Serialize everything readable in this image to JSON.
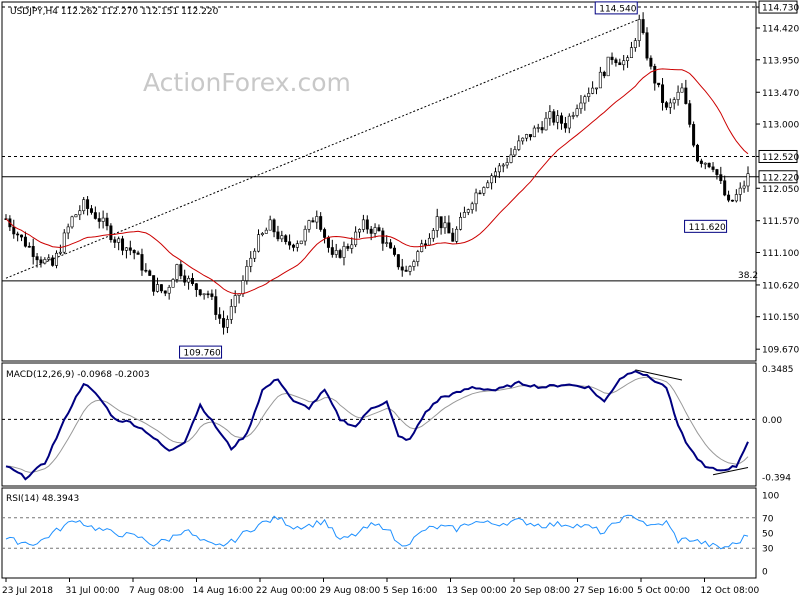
{
  "header": {
    "symbol": "USDJPY,H4",
    "ohlc": "112.262 112.270 112.151 112.220"
  },
  "watermark": "ActionForex.com",
  "colors": {
    "candles": "#000000",
    "ma": "#cc0000",
    "macd_line": "#000080",
    "signal": "#999999",
    "rsi": "#1e90ff",
    "box": "#000080"
  },
  "chart_data": [
    {
      "type": "candlestick",
      "title": "USDJPY,H4",
      "price_labels": [
        "114.730",
        "114.420",
        "113.950",
        "113.470",
        "113.000",
        "112.520",
        "112.220",
        "112.050",
        "111.570",
        "111.100",
        "110.620",
        "110.150",
        "109.670"
      ],
      "ylim": [
        109.51,
        114.79
      ],
      "x_ticks": [
        "23 Jul 2018",
        "31 Jul 00:00",
        "7 Aug 08:00",
        "14 Aug 16:00",
        "22 Aug 00:00",
        "29 Aug 08:00",
        "5 Sep 16:00",
        "13 Sep 00:00",
        "20 Sep 08:00",
        "27 Sep 16:00",
        "5 Oct 00:00",
        "12 Oct 08:00"
      ],
      "horizontal_levels": [
        {
          "value": 114.73,
          "label": "114.730",
          "style": "dashed"
        },
        {
          "value": 112.52,
          "label": "112.520",
          "style": "dashed"
        },
        {
          "value": 112.22,
          "label": "112.220",
          "style": "solid"
        },
        {
          "value": 110.68,
          "label": "38.2",
          "style": "solid"
        }
      ],
      "annotations": [
        {
          "text": "114.540",
          "value": 114.54
        },
        {
          "text": "111.620",
          "value": 111.62
        },
        {
          "text": "109.760",
          "value": 109.76
        }
      ],
      "trendline": {
        "from": 110.72,
        "to": 114.55,
        "style": "dotted"
      },
      "anchors": [
        {
          "x": 0,
          "y": 111.6
        },
        {
          "x": 4,
          "y": 111.3
        },
        {
          "x": 9,
          "y": 111.0
        },
        {
          "x": 12,
          "y": 110.9
        },
        {
          "x": 17,
          "y": 111.6
        },
        {
          "x": 20,
          "y": 111.8
        },
        {
          "x": 24,
          "y": 111.6
        },
        {
          "x": 28,
          "y": 111.3
        },
        {
          "x": 33,
          "y": 111.1
        },
        {
          "x": 38,
          "y": 110.6
        },
        {
          "x": 41,
          "y": 110.5
        },
        {
          "x": 44,
          "y": 110.9
        },
        {
          "x": 48,
          "y": 110.6
        },
        {
          "x": 52,
          "y": 110.5
        },
        {
          "x": 56,
          "y": 110.0
        },
        {
          "x": 60,
          "y": 110.5
        },
        {
          "x": 64,
          "y": 111.2
        },
        {
          "x": 68,
          "y": 111.5
        },
        {
          "x": 72,
          "y": 111.2
        },
        {
          "x": 76,
          "y": 111.3
        },
        {
          "x": 80,
          "y": 111.7
        },
        {
          "x": 84,
          "y": 111.0
        },
        {
          "x": 88,
          "y": 111.2
        },
        {
          "x": 92,
          "y": 111.5
        },
        {
          "x": 96,
          "y": 111.4
        },
        {
          "x": 100,
          "y": 111.0
        },
        {
          "x": 103,
          "y": 110.8
        },
        {
          "x": 107,
          "y": 111.2
        },
        {
          "x": 111,
          "y": 111.6
        },
        {
          "x": 115,
          "y": 111.3
        },
        {
          "x": 120,
          "y": 111.9
        },
        {
          "x": 124,
          "y": 112.2
        },
        {
          "x": 128,
          "y": 112.4
        },
        {
          "x": 132,
          "y": 112.7
        },
        {
          "x": 136,
          "y": 112.9
        },
        {
          "x": 140,
          "y": 113.1
        },
        {
          "x": 144,
          "y": 113.0
        },
        {
          "x": 148,
          "y": 113.4
        },
        {
          "x": 152,
          "y": 113.6
        },
        {
          "x": 156,
          "y": 114.0
        },
        {
          "x": 160,
          "y": 113.9
        },
        {
          "x": 163,
          "y": 114.5
        },
        {
          "x": 166,
          "y": 113.8
        },
        {
          "x": 170,
          "y": 113.2
        },
        {
          "x": 174,
          "y": 113.5
        },
        {
          "x": 178,
          "y": 112.5
        },
        {
          "x": 182,
          "y": 112.4
        },
        {
          "x": 186,
          "y": 111.8
        },
        {
          "x": 189,
          "y": 112.0
        },
        {
          "x": 191,
          "y": 112.22
        }
      ],
      "n_bars": 192
    },
    {
      "type": "line",
      "title": "MACD(12,26,9) -0.0968 -0.2003",
      "y_labels": [
        "0.3485",
        "0.00",
        "-0.394"
      ],
      "ylim": [
        -0.45,
        0.38
      ],
      "levels": [
        0.0
      ],
      "macd_anchors": [
        {
          "x": 0,
          "y": -0.32
        },
        {
          "x": 5,
          "y": -0.4
        },
        {
          "x": 10,
          "y": -0.3
        },
        {
          "x": 16,
          "y": 0.05
        },
        {
          "x": 20,
          "y": 0.25
        },
        {
          "x": 24,
          "y": 0.15
        },
        {
          "x": 28,
          "y": 0.0
        },
        {
          "x": 32,
          "y": -0.02
        },
        {
          "x": 36,
          "y": -0.08
        },
        {
          "x": 42,
          "y": -0.22
        },
        {
          "x": 46,
          "y": -0.15
        },
        {
          "x": 50,
          "y": 0.1
        },
        {
          "x": 54,
          "y": -0.05
        },
        {
          "x": 58,
          "y": -0.2
        },
        {
          "x": 62,
          "y": -0.1
        },
        {
          "x": 66,
          "y": 0.2
        },
        {
          "x": 70,
          "y": 0.28
        },
        {
          "x": 74,
          "y": 0.12
        },
        {
          "x": 78,
          "y": 0.08
        },
        {
          "x": 82,
          "y": 0.2
        },
        {
          "x": 86,
          "y": 0.0
        },
        {
          "x": 90,
          "y": -0.05
        },
        {
          "x": 94,
          "y": 0.08
        },
        {
          "x": 98,
          "y": 0.12
        },
        {
          "x": 101,
          "y": -0.12
        },
        {
          "x": 104,
          "y": -0.14
        },
        {
          "x": 108,
          "y": 0.05
        },
        {
          "x": 112,
          "y": 0.15
        },
        {
          "x": 116,
          "y": 0.18
        },
        {
          "x": 120,
          "y": 0.22
        },
        {
          "x": 126,
          "y": 0.2
        },
        {
          "x": 132,
          "y": 0.25
        },
        {
          "x": 138,
          "y": 0.22
        },
        {
          "x": 144,
          "y": 0.24
        },
        {
          "x": 150,
          "y": 0.22
        },
        {
          "x": 154,
          "y": 0.12
        },
        {
          "x": 158,
          "y": 0.28
        },
        {
          "x": 162,
          "y": 0.34
        },
        {
          "x": 166,
          "y": 0.28
        },
        {
          "x": 170,
          "y": 0.22
        },
        {
          "x": 173,
          "y": -0.05
        },
        {
          "x": 176,
          "y": -0.2
        },
        {
          "x": 180,
          "y": -0.33
        },
        {
          "x": 184,
          "y": -0.35
        },
        {
          "x": 188,
          "y": -0.32
        },
        {
          "x": 191,
          "y": -0.15
        }
      ],
      "divergence_lines": [
        {
          "x1": 162,
          "y1": 0.34,
          "x2": 174,
          "y2": 0.27
        },
        {
          "x1": 182,
          "y1": -0.38,
          "x2": 191,
          "y2": -0.33
        }
      ]
    },
    {
      "type": "line",
      "title": "RSI(14) 48.3943",
      "y_labels": [
        "100",
        "70",
        "50",
        "30",
        "0"
      ],
      "ylim": [
        0,
        100
      ],
      "levels": [
        70,
        30
      ],
      "rsi_anchors": [
        {
          "x": 0,
          "y": 42
        },
        {
          "x": 4,
          "y": 38
        },
        {
          "x": 8,
          "y": 36
        },
        {
          "x": 12,
          "y": 50
        },
        {
          "x": 18,
          "y": 68
        },
        {
          "x": 22,
          "y": 58
        },
        {
          "x": 26,
          "y": 52
        },
        {
          "x": 30,
          "y": 48
        },
        {
          "x": 34,
          "y": 45
        },
        {
          "x": 38,
          "y": 35
        },
        {
          "x": 42,
          "y": 42
        },
        {
          "x": 46,
          "y": 55
        },
        {
          "x": 50,
          "y": 40
        },
        {
          "x": 54,
          "y": 32
        },
        {
          "x": 58,
          "y": 38
        },
        {
          "x": 62,
          "y": 52
        },
        {
          "x": 66,
          "y": 63
        },
        {
          "x": 70,
          "y": 70
        },
        {
          "x": 74,
          "y": 58
        },
        {
          "x": 78,
          "y": 60
        },
        {
          "x": 82,
          "y": 66
        },
        {
          "x": 86,
          "y": 40
        },
        {
          "x": 90,
          "y": 48
        },
        {
          "x": 94,
          "y": 60
        },
        {
          "x": 98,
          "y": 58
        },
        {
          "x": 101,
          "y": 35
        },
        {
          "x": 104,
          "y": 38
        },
        {
          "x": 108,
          "y": 55
        },
        {
          "x": 112,
          "y": 58
        },
        {
          "x": 116,
          "y": 55
        },
        {
          "x": 120,
          "y": 65
        },
        {
          "x": 126,
          "y": 62
        },
        {
          "x": 132,
          "y": 66
        },
        {
          "x": 138,
          "y": 60
        },
        {
          "x": 144,
          "y": 62
        },
        {
          "x": 150,
          "y": 58
        },
        {
          "x": 154,
          "y": 50
        },
        {
          "x": 158,
          "y": 68
        },
        {
          "x": 162,
          "y": 72
        },
        {
          "x": 166,
          "y": 58
        },
        {
          "x": 170,
          "y": 64
        },
        {
          "x": 173,
          "y": 40
        },
        {
          "x": 176,
          "y": 42
        },
        {
          "x": 180,
          "y": 36
        },
        {
          "x": 184,
          "y": 30
        },
        {
          "x": 188,
          "y": 36
        },
        {
          "x": 191,
          "y": 48
        }
      ]
    }
  ]
}
